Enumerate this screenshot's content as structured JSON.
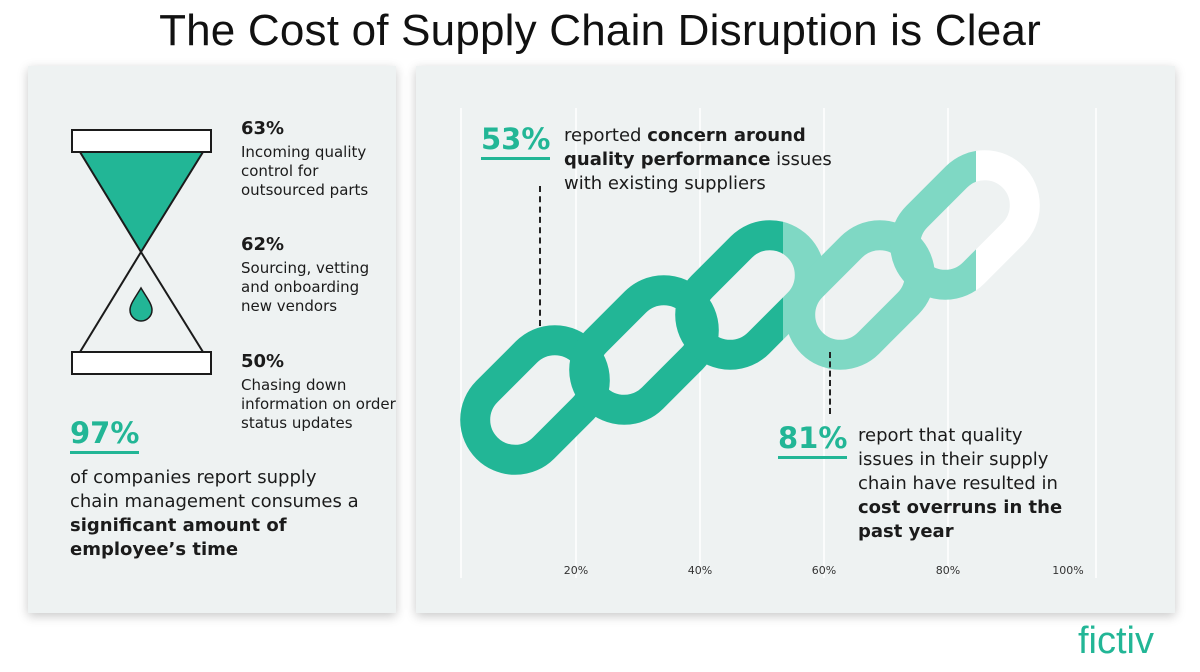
{
  "title": "The Cost of Supply Chain Disruption is Clear",
  "colors": {
    "accent": "#22b696",
    "accent_light": "#7fd8c4",
    "panel": "#eef2f2"
  },
  "left": {
    "stats": [
      {
        "pct": "63%",
        "desc": "Incoming quality control for outsourced parts"
      },
      {
        "pct": "62%",
        "desc": "Sourcing, vetting and onboarding new vendors"
      },
      {
        "pct": "50%",
        "desc": "Chasing down information on order status updates"
      }
    ],
    "big_pct": "97%",
    "big_text_1": "of companies report supply chain management consumes a ",
    "big_text_bold": "significant amount of employee’s time"
  },
  "right": {
    "top_pct": "53%",
    "top_text_1": "reported ",
    "top_text_bold": "concern around quality performance",
    "top_text_2": " issues with existing suppliers",
    "bottom_pct": "81%",
    "bottom_text_1": "report that quality issues in their supply chain have resulted in ",
    "bottom_text_bold": "cost overruns in the past year",
    "axis": [
      "20%",
      "40%",
      "60%",
      "80%",
      "100%"
    ]
  },
  "logo": "fictiv",
  "icons": {
    "hourglass": "hourglass-icon",
    "chain": "chain-links-icon"
  }
}
